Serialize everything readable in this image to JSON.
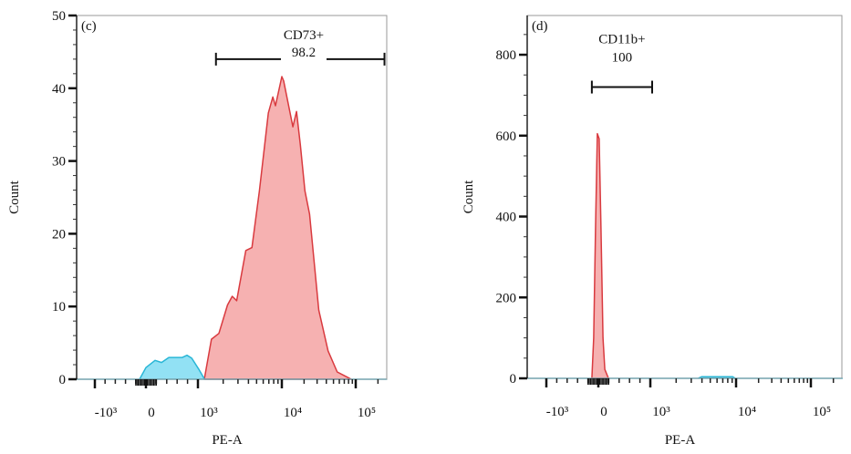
{
  "chart_data": [
    {
      "type": "area",
      "panel_label": "(c)",
      "xlabel": "PE-A",
      "ylabel": "Count",
      "x_scale": "biexponential",
      "xlim": [
        -1357,
        262144
      ],
      "ylim": [
        0,
        50
      ],
      "x_ticks": [
        {
          "value": -1000,
          "label": "-10³"
        },
        {
          "value": 0,
          "label": "0"
        },
        {
          "value": 1000,
          "label": "10³"
        },
        {
          "value": 10000,
          "label": "10⁴"
        },
        {
          "value": 100000,
          "label": "10⁵"
        }
      ],
      "y_ticks": [
        0,
        10,
        20,
        30,
        40,
        50
      ],
      "y_minor_step": 2,
      "grid": false,
      "gate": {
        "name": "CD73+",
        "value": "98.2",
        "range": [
          1640,
          245000
        ],
        "level": 44
      },
      "series": [
        {
          "color": "#d93a3f",
          "fill": "#f5a3a3",
          "x": [
            1190,
            1450,
            1780,
            2250,
            2560,
            2900,
            3720,
            4400,
            5400,
            6900,
            7800,
            8400,
            10000,
            10600,
            14100,
            15800,
            17800,
            20500,
            23700,
            31600,
            42200,
            56200,
            87000
          ],
          "y": [
            0,
            5.5,
            6.3,
            10.2,
            11.4,
            10.8,
            17.7,
            18.1,
            25.9,
            36.6,
            38.8,
            37.6,
            41.6,
            41.0,
            34.7,
            36.8,
            32.2,
            25.9,
            22.7,
            9.5,
            3.9,
            1.0,
            0
          ]
        },
        {
          "color": "#29b6d6",
          "fill": "#7fdcf2",
          "x": [
            -1357,
            -125,
            0,
            175,
            300,
            440,
            700,
            790,
            880,
            1020,
            1200,
            262144
          ],
          "y": [
            0,
            0,
            1.6,
            2.6,
            2.3,
            3.0,
            3.0,
            3.3,
            2.9,
            1.4,
            0,
            0
          ]
        }
      ]
    },
    {
      "type": "area",
      "panel_label": "(d)",
      "xlabel": "PE-A",
      "ylabel": "Count",
      "x_scale": "biexponential",
      "xlim": [
        -1357,
        262144
      ],
      "ylim": [
        0,
        897
      ],
      "x_ticks": [
        {
          "value": -1000,
          "label": "-10³"
        },
        {
          "value": 0,
          "label": "0"
        },
        {
          "value": 1000,
          "label": "10³"
        },
        {
          "value": 10000,
          "label": "10⁴"
        },
        {
          "value": 100000,
          "label": "10⁵"
        }
      ],
      "y_ticks": [
        0,
        200,
        400,
        600,
        800
      ],
      "y_minor_step": 50,
      "grid": false,
      "gate": {
        "name": "CD11b+",
        "value": "100",
        "range": [
          -125,
          1050
        ],
        "level": 720
      },
      "series": [
        {
          "color": "#d93a3f",
          "fill": "#f5a3a3",
          "x": [
            -125,
            -90,
            -55,
            -20,
            15,
            50,
            90,
            125,
            195
          ],
          "y": [
            0,
            100,
            370,
            605,
            592,
            370,
            100,
            22,
            0
          ]
        },
        {
          "color": "#29b6d6",
          "fill": "#7fdcf2",
          "x": [
            -1357,
            3600,
            3980,
            6000,
            9100,
            9800,
            262144
          ],
          "y": [
            0,
            0,
            4,
            4,
            4,
            0,
            0
          ]
        }
      ]
    }
  ]
}
